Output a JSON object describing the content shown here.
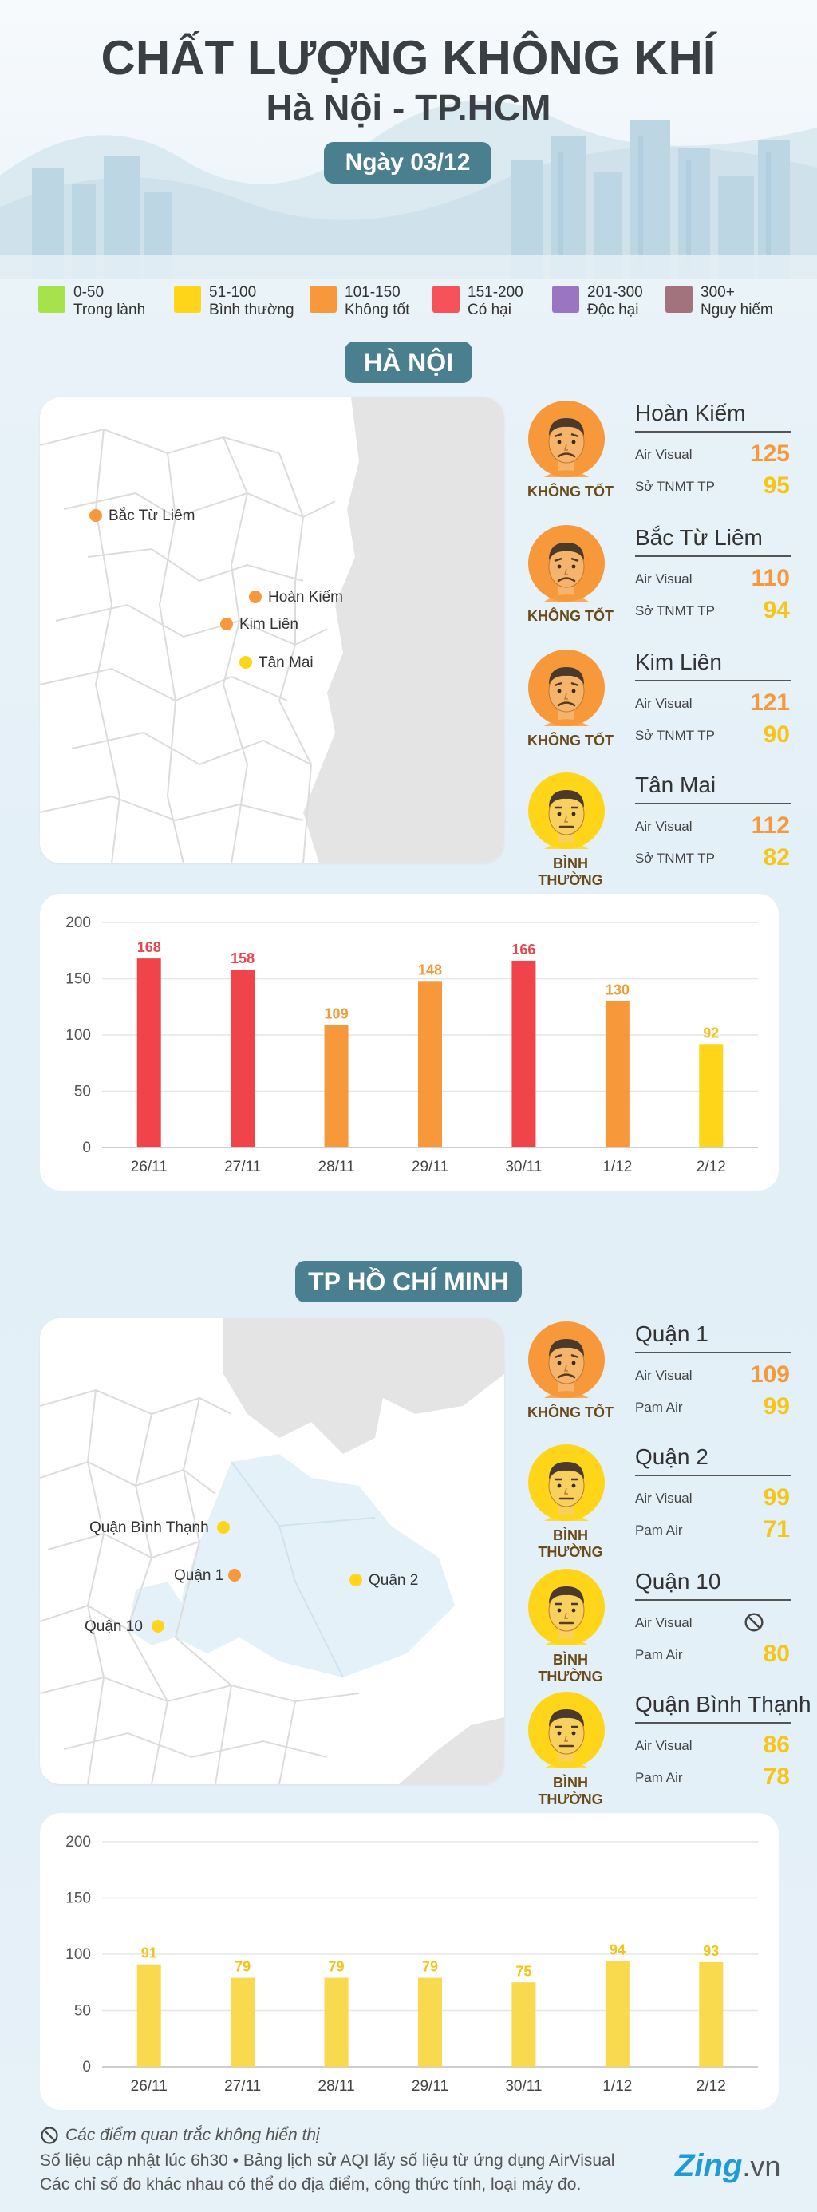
{
  "header": {
    "title": "CHẤT LƯỢNG KHÔNG KHÍ",
    "subtitle": "Hà Nội - TP.HCM",
    "date": "Ngày 03/12"
  },
  "colors": {
    "good": "#a6e34a",
    "moderate": "#ffd51a",
    "unhealthy_sensitive": "#f7983a",
    "unhealthy": "#f5525b",
    "very_unhealthy": "#9b76c0",
    "hazardous": "#a2727d",
    "accent": "#4a7f8f"
  },
  "legend": [
    {
      "range": "0-50",
      "label": "Trong lành",
      "color": "#a6e34a"
    },
    {
      "range": "51-100",
      "label": "Bình thường",
      "color": "#ffd51a"
    },
    {
      "range": "101-150",
      "label": "Không tốt",
      "color": "#f7983a"
    },
    {
      "range": "151-200",
      "label": "Có hại",
      "color": "#f5525b"
    },
    {
      "range": "201-300",
      "label": "Độc hại",
      "color": "#9b76c0"
    },
    {
      "range": "300+",
      "label": "Nguy hiểm",
      "color": "#a2727d"
    }
  ],
  "hanoi": {
    "section_title": "HÀ NỘI",
    "map_pins": [
      {
        "label": "Bắc Từ Liêm",
        "color": "#f7983a"
      },
      {
        "label": "Hoàn Kiếm",
        "color": "#f7983a"
      },
      {
        "label": "Kim Liên",
        "color": "#f7983a"
      },
      {
        "label": "Tân Mai",
        "color": "#ffd51a"
      }
    ],
    "stations": [
      {
        "name": "Hoàn Kiếm",
        "status": "KHÔNG TỐT",
        "face": "sad-face-icon",
        "sources": [
          {
            "label": "Air Visual",
            "value": "125",
            "color": "#f7983a"
          },
          {
            "label": "Sở TNMT TP",
            "value": "95",
            "color": "#f5c518"
          }
        ]
      },
      {
        "name": "Bắc Từ Liêm",
        "status": "KHÔNG TỐT",
        "face": "sad-face-icon",
        "sources": [
          {
            "label": "Air Visual",
            "value": "110",
            "color": "#f7983a"
          },
          {
            "label": "Sở TNMT TP",
            "value": "94",
            "color": "#f5c518"
          }
        ]
      },
      {
        "name": "Kim Liên",
        "status": "KHÔNG TỐT",
        "face": "sad-face-icon",
        "sources": [
          {
            "label": "Air Visual",
            "value": "121",
            "color": "#f7983a"
          },
          {
            "label": "Sở TNMT TP",
            "value": "90",
            "color": "#f5c518"
          }
        ]
      },
      {
        "name": "Tân Mai",
        "status": "BÌNH THƯỜNG",
        "face": "neutral-face-icon",
        "sources": [
          {
            "label": "Air Visual",
            "value": "112",
            "color": "#f7983a"
          },
          {
            "label": "Sở TNMT TP",
            "value": "82",
            "color": "#f5c518"
          }
        ]
      }
    ]
  },
  "hcm": {
    "section_title": "TP HỒ CHÍ MINH",
    "map_pins": [
      {
        "label": "Quận Bình Thạnh",
        "color": "#ffd51a"
      },
      {
        "label": "Quận 1",
        "color": "#f7983a"
      },
      {
        "label": "Quận 2",
        "color": "#ffd51a"
      },
      {
        "label": "Quận 10",
        "color": "#ffd51a"
      }
    ],
    "stations": [
      {
        "name": "Quận 1",
        "status": "KHÔNG TỐT",
        "face": "sad-face-icon",
        "sources": [
          {
            "label": "Air Visual",
            "value": "109",
            "color": "#f7983a"
          },
          {
            "label": "Pam Air",
            "value": "99",
            "color": "#f5c518"
          }
        ]
      },
      {
        "name": "Quận 2",
        "status": "BÌNH THƯỜNG",
        "face": "neutral-face-icon",
        "sources": [
          {
            "label": "Air Visual",
            "value": "99",
            "color": "#f5c518"
          },
          {
            "label": "Pam Air",
            "value": "71",
            "color": "#f5c518"
          }
        ]
      },
      {
        "name": "Quận 10",
        "status": "BÌNH THƯỜNG",
        "face": "neutral-face-icon",
        "sources": [
          {
            "label": "Air Visual",
            "value": "",
            "icon": "not-displayed-icon",
            "color": "#555555"
          },
          {
            "label": "Pam Air",
            "value": "80",
            "color": "#f5c518"
          }
        ]
      },
      {
        "name": "Quận Bình Thạnh",
        "status": "BÌNH THƯỜNG",
        "face": "neutral-face-icon",
        "sources": [
          {
            "label": "Air Visual",
            "value": "86",
            "color": "#f5c518"
          },
          {
            "label": "Pam Air",
            "value": "78",
            "color": "#f5c518"
          }
        ]
      }
    ]
  },
  "chart_data": [
    {
      "type": "bar",
      "categories": [
        "26/11",
        "27/11",
        "28/11",
        "29/11",
        "30/11",
        "1/12",
        "2/12"
      ],
      "values": [
        168,
        158,
        109,
        148,
        166,
        130,
        92
      ],
      "colors": [
        "#f0434a",
        "#f0434a",
        "#f7983a",
        "#f7983a",
        "#f0434a",
        "#f7983a",
        "#ffd51a"
      ],
      "label_colors": [
        "#e8464c",
        "#e8464c",
        "#f09a3a",
        "#f09a3a",
        "#e8464c",
        "#f09a3a",
        "#f2c418"
      ],
      "yticks": [
        0,
        50,
        100,
        150,
        200
      ],
      "ylim": [
        0,
        200
      ],
      "grid": true
    },
    {
      "type": "bar",
      "categories": [
        "26/11",
        "27/11",
        "28/11",
        "29/11",
        "30/11",
        "1/12",
        "2/12"
      ],
      "values": [
        91,
        79,
        79,
        79,
        75,
        94,
        93
      ],
      "colors": [
        "#f9d94e",
        "#f9d94e",
        "#f9d94e",
        "#f9d94e",
        "#f9d94e",
        "#f9d94e",
        "#f9d94e"
      ],
      "label_colors": [
        "#f2c418",
        "#f2c418",
        "#f2c418",
        "#f2c418",
        "#f2c418",
        "#f2c418",
        "#f2c418"
      ],
      "yticks": [
        0,
        50,
        100,
        150,
        200
      ],
      "ylim": [
        0,
        200
      ],
      "grid": true
    }
  ],
  "footer": {
    "note": "Các điểm quan trắc không hiển thị",
    "line1": "Số liệu cập nhật lúc 6h30 • Bảng lịch sử AQI lấy số liệu từ ứng dụng AirVisual",
    "line2": "Các chỉ số đo khác nhau có thể do địa điểm, công thức tính, loại máy đo.",
    "logo_main": "Zing",
    "logo_suffix": ".vn"
  }
}
